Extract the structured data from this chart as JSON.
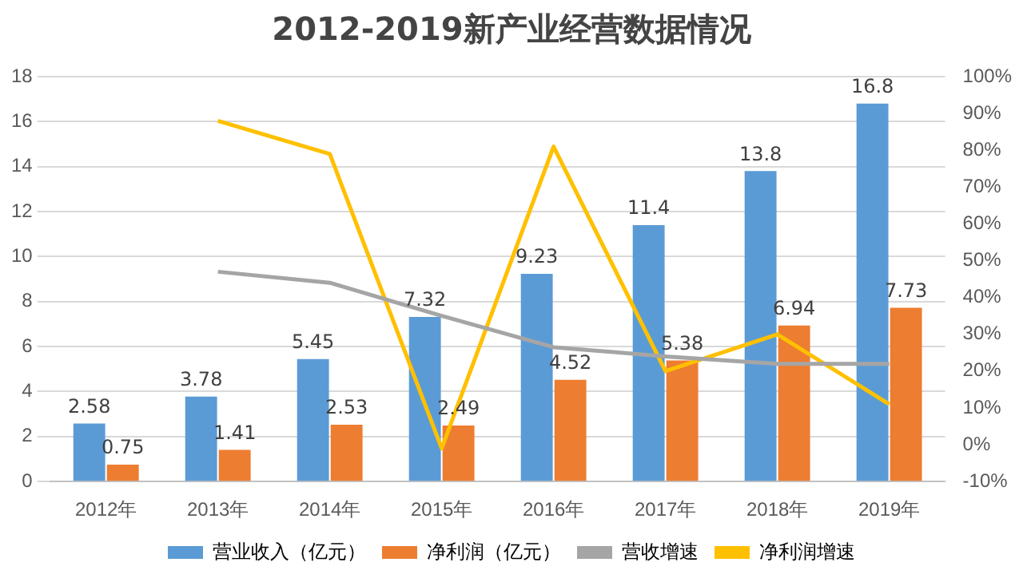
{
  "chart_data": {
    "type": "bar",
    "title": "2012-2019新产业经营数据情况",
    "categories": [
      "2012年",
      "2013年",
      "2014年",
      "2015年",
      "2016年",
      "2017年",
      "2018年",
      "2019年"
    ],
    "series": [
      {
        "name": "营业收入（亿元）",
        "color": "#5b9bd5",
        "values": [
          2.58,
          3.78,
          5.45,
          7.32,
          9.23,
          11.4,
          13.8,
          16.8
        ],
        "value_labels": [
          "2.58",
          "3.78",
          "5.45",
          "7.32",
          "9.23",
          "11.4",
          "13.8",
          "16.8"
        ]
      },
      {
        "name": "净利润（亿元）",
        "color": "#ed7d31",
        "values": [
          0.75,
          1.41,
          2.53,
          2.49,
          4.52,
          5.38,
          6.94,
          7.73
        ],
        "value_labels": [
          "0.75",
          "1.41",
          "2.53",
          "2.49",
          "4.52",
          "5.38",
          "6.94",
          "7.73"
        ]
      },
      {
        "name": "营收增速",
        "type": "line",
        "axis": "y2",
        "color": "#a5a5a5",
        "values": [
          null,
          47,
          44,
          35,
          26.5,
          24,
          22,
          22
        ]
      },
      {
        "name": "净利润增速",
        "type": "line",
        "axis": "y2",
        "color": "#ffc000",
        "values": [
          null,
          88,
          79,
          -1,
          81,
          20,
          30,
          11
        ]
      }
    ],
    "ylim": [
      0,
      18
    ],
    "yticks": [
      0,
      2,
      4,
      6,
      8,
      10,
      12,
      14,
      16,
      18
    ],
    "y2lim": [
      -10,
      100
    ],
    "y2ticks": [
      {
        "value": -10,
        "label": "-10%"
      },
      {
        "value": 0,
        "label": "0%"
      },
      {
        "value": 10,
        "label": "10%"
      },
      {
        "value": 20,
        "label": "20%"
      },
      {
        "value": 30,
        "label": "30%"
      },
      {
        "value": 40,
        "label": "40%"
      },
      {
        "value": 50,
        "label": "50%"
      },
      {
        "value": 60,
        "label": "60%"
      },
      {
        "value": 70,
        "label": "70%"
      },
      {
        "value": 80,
        "label": "80%"
      },
      {
        "value": 90,
        "label": "90%"
      },
      {
        "value": 100,
        "label": "100%"
      }
    ],
    "grid": "y",
    "legend": "bottom",
    "marker": "none",
    "line_style": "solid"
  }
}
